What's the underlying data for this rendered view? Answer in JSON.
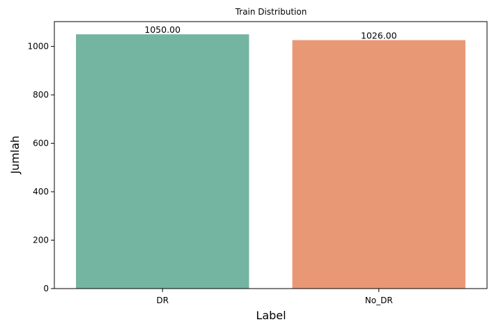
{
  "chart_data": {
    "type": "bar",
    "title": "Train Distribution",
    "xlabel": "Label",
    "ylabel": "Jumlah",
    "categories": [
      "DR",
      "No_DR"
    ],
    "values": [
      1050,
      1026
    ],
    "data_labels": [
      "1050.00",
      "1026.00"
    ],
    "colors": [
      "#73b5a0",
      "#e99875"
    ],
    "ylim": [
      0,
      1102.5
    ],
    "yticks": [
      0,
      200,
      400,
      600,
      800,
      1000
    ],
    "grid": false,
    "legend": "none"
  }
}
